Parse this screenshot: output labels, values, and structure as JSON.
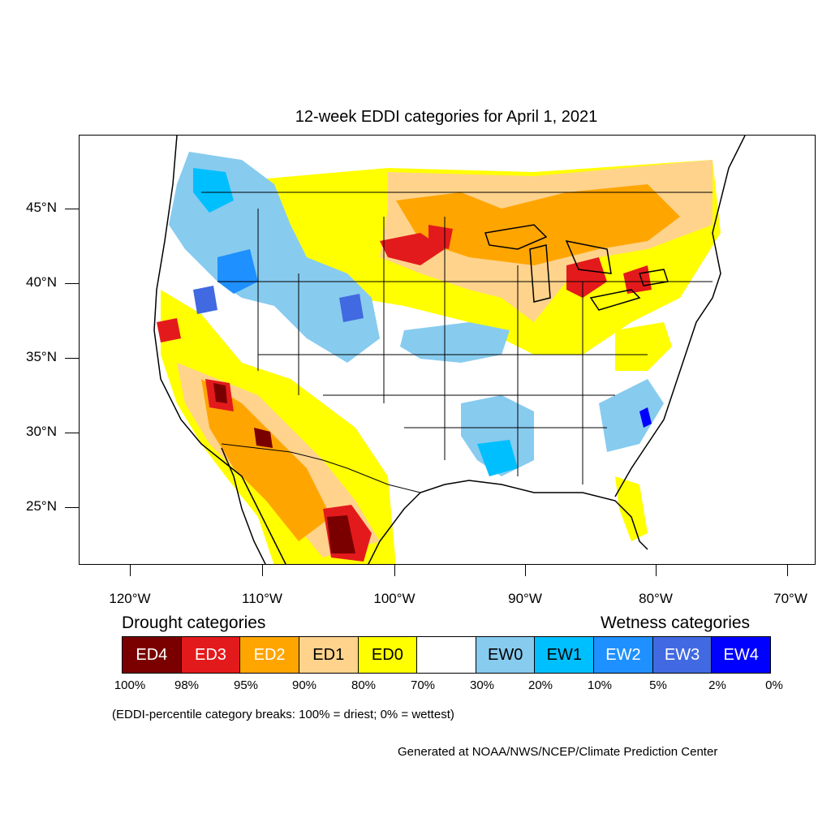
{
  "title": "12-week EDDI categories for April 1, 2021",
  "axes": {
    "y_labels": [
      "45°N",
      "40°N",
      "35°N",
      "30°N",
      "25°N"
    ],
    "x_labels": [
      "120°W",
      "110°W",
      "100°W",
      "90°W",
      "80°W",
      "70°W"
    ]
  },
  "legend": {
    "drought_heading": "Drought categories",
    "wetness_heading": "Wetness categories",
    "categories": [
      {
        "label": "ED4",
        "color": "#7a0000",
        "text_color": "#ffffff"
      },
      {
        "label": "ED3",
        "color": "#e31a1c",
        "text_color": "#ffffff"
      },
      {
        "label": "ED2",
        "color": "#ffa500",
        "text_color": "#ffffff"
      },
      {
        "label": "ED1",
        "color": "#ffd38c",
        "text_color": "#000000"
      },
      {
        "label": "ED0",
        "color": "#ffff00",
        "text_color": "#000000"
      },
      {
        "label": "",
        "color": "#ffffff",
        "text_color": "#000000"
      },
      {
        "label": "EW0",
        "color": "#87cbef",
        "text_color": "#000000"
      },
      {
        "label": "EW1",
        "color": "#00bfff",
        "text_color": "#000000"
      },
      {
        "label": "EW2",
        "color": "#1e90ff",
        "text_color": "#ffffff"
      },
      {
        "label": "EW3",
        "color": "#4169e1",
        "text_color": "#ffffff"
      },
      {
        "label": "EW4",
        "color": "#0000ff",
        "text_color": "#ffffff"
      }
    ],
    "breaks": [
      "100%",
      "98%",
      "95%",
      "90%",
      "80%",
      "70%",
      "30%",
      "20%",
      "10%",
      "5%",
      "2%",
      "0%"
    ]
  },
  "note": "(EDDI-percentile category breaks: 100% = driest; 0% = wettest)",
  "credit": "Generated at NOAA/NWS/NCEP/Climate Prediction Center"
}
